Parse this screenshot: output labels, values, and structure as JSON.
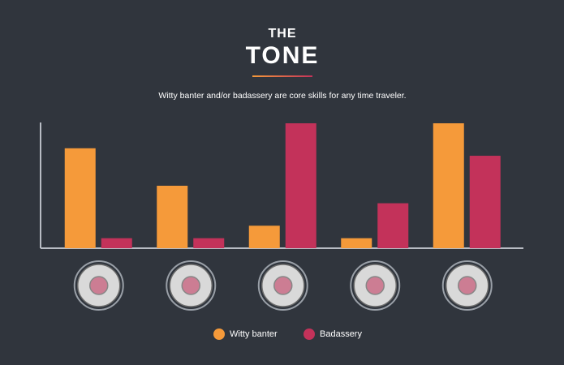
{
  "chart_data": {
    "type": "bar",
    "supertitle": "THE",
    "title": "TONE",
    "subtitle": "Witty banter and/or badassery are core skills for any time traveler.",
    "categories": [
      null,
      null,
      null,
      null,
      null
    ],
    "series": [
      {
        "name": "Witty banter",
        "color": "#f59a3a",
        "values": [
          80,
          50,
          18,
          8,
          100
        ]
      },
      {
        "name": "Badassery",
        "color": "#c3325a",
        "values": [
          8,
          8,
          100,
          36,
          74
        ]
      }
    ],
    "ylim": [
      0,
      100
    ],
    "grid": false
  }
}
